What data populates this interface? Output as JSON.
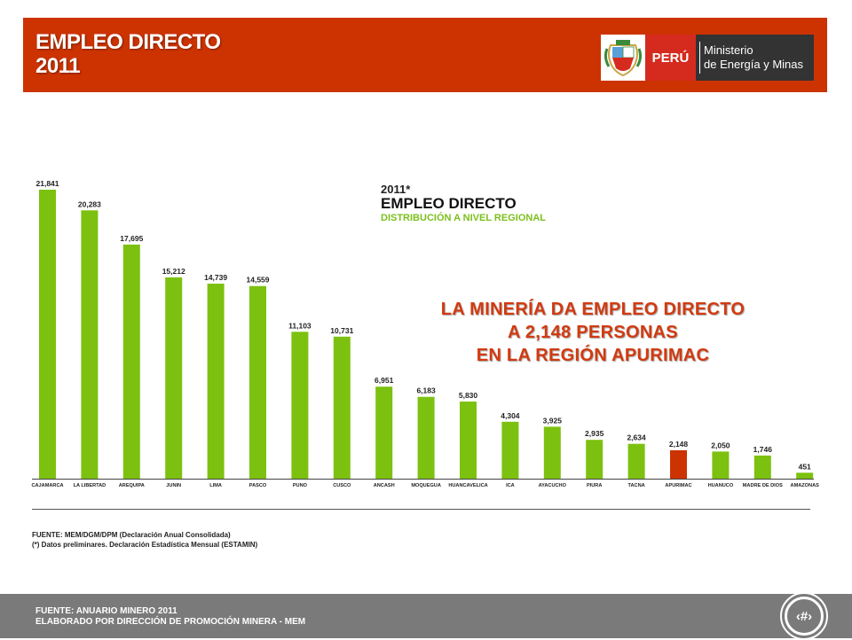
{
  "header": {
    "title_line1": "EMPLEO DIRECTO",
    "title_line2": "2011",
    "logo_country": "PERÚ",
    "logo_ministry_line1": "Ministerio",
    "logo_ministry_line2": "de Energía y Minas"
  },
  "colors": {
    "header_bg": "#cc3300",
    "bar_default": "#7cc10f",
    "bar_highlight": "#cc3300",
    "callout_text": "#d23a10",
    "footer_bg": "#7a7a7a"
  },
  "legend": {
    "year": "2011*",
    "title": "EMPLEO DIRECTO",
    "subtitle": "DISTRIBUCIÓN A NIVEL REGIONAL"
  },
  "callout": {
    "line1": "LA MINERÍA DA EMPLEO DIRECTO",
    "line2": "A 2,148 PERSONAS",
    "line3": "EN LA REGIÓN APURIMAC"
  },
  "chart_data": {
    "type": "bar",
    "title": "",
    "xlabel": "",
    "ylabel": "",
    "ylim": [
      0,
      22000
    ],
    "grid": false,
    "highlight_category": "APURIMAC",
    "categories": [
      "CAJAMARCA",
      "LA LIBERTAD",
      "AREQUIPA",
      "JUNIN",
      "LIMA",
      "PASCO",
      "PUNO",
      "CUSCO",
      "ANCASH",
      "MOQUEGUA",
      "HUANCAVELICA",
      "ICA",
      "AYACUCHO",
      "PIURA",
      "TACNA",
      "APURIMAC",
      "HUANUCO",
      "MADRE DE DIOS",
      "AMAZONAS"
    ],
    "values": [
      21841,
      20283,
      17695,
      15212,
      14739,
      14559,
      11103,
      10731,
      6951,
      6183,
      5830,
      4304,
      3925,
      2935,
      2634,
      2148,
      2050,
      1746,
      451
    ],
    "value_labels": [
      "21,841",
      "20,283",
      "17,695",
      "15,212",
      "14,739",
      "14,559",
      "11,103",
      "10,731",
      "6,951",
      "6,183",
      "5,830",
      "4,304",
      "3,925",
      "2,935",
      "2,634",
      "2,148",
      "2,050",
      "1,746",
      "451"
    ]
  },
  "source": {
    "line1": "FUENTE: MEM/DGM/DPM (Declaración Anual Consolidada)",
    "line2": "(*) Datos preliminares. Declaración Estadística Mensual (ESTAMIN)"
  },
  "footer": {
    "line1": "FUENTE: ANUARIO MINERO 2011",
    "line2": "ELABORADO POR DIRECCIÓN DE PROMOCIÓN MINERA - MEM",
    "page_number": "‹#›"
  }
}
